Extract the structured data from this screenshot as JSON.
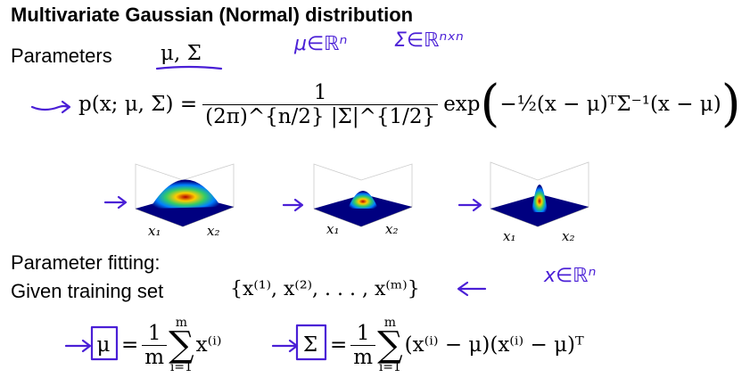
{
  "title": "Multivariate Gaussian (Normal) distribution",
  "parameters_label": "Parameters",
  "parameters_math": "μ, Σ",
  "handwritten_notes": {
    "mu_in": "μ∈ℝⁿ",
    "sigma_in": "Σ∈ℝⁿˣⁿ",
    "x_in": "x∈ℝⁿ"
  },
  "pdf": {
    "lhs": "p(x; μ, Σ) =",
    "numerator": "1",
    "denominator": "(2π)^{n/2} |Σ|^{1/2}",
    "exp": "exp",
    "inner": "−½(x − μ)ᵀΣ⁻¹(x − μ)"
  },
  "plots": [
    {
      "x1_label": "x₁",
      "x2_label": "x₂"
    },
    {
      "x1_label": "x₁",
      "x2_label": "x₂"
    },
    {
      "x1_label": "x₁",
      "x2_label": "x₂"
    }
  ],
  "fitting_label": "Parameter fitting:",
  "training_label": "Given training set",
  "training_set": "{x⁽¹⁾, x⁽²⁾, . . . , x⁽ᵐ⁾}",
  "mu_formula": {
    "lhs": "μ",
    "numerator": "1",
    "denominator": "m",
    "sum_top": "m",
    "sum_bottom": "i=1",
    "body": "x⁽ⁱ⁾"
  },
  "sigma_formula": {
    "lhs": "Σ",
    "numerator": "1",
    "denominator": "m",
    "sum_top": "m",
    "sum_bottom": "i=1",
    "body": "(x⁽ⁱ⁾ − μ)(x⁽ⁱ⁾ − μ)ᵀ"
  }
}
